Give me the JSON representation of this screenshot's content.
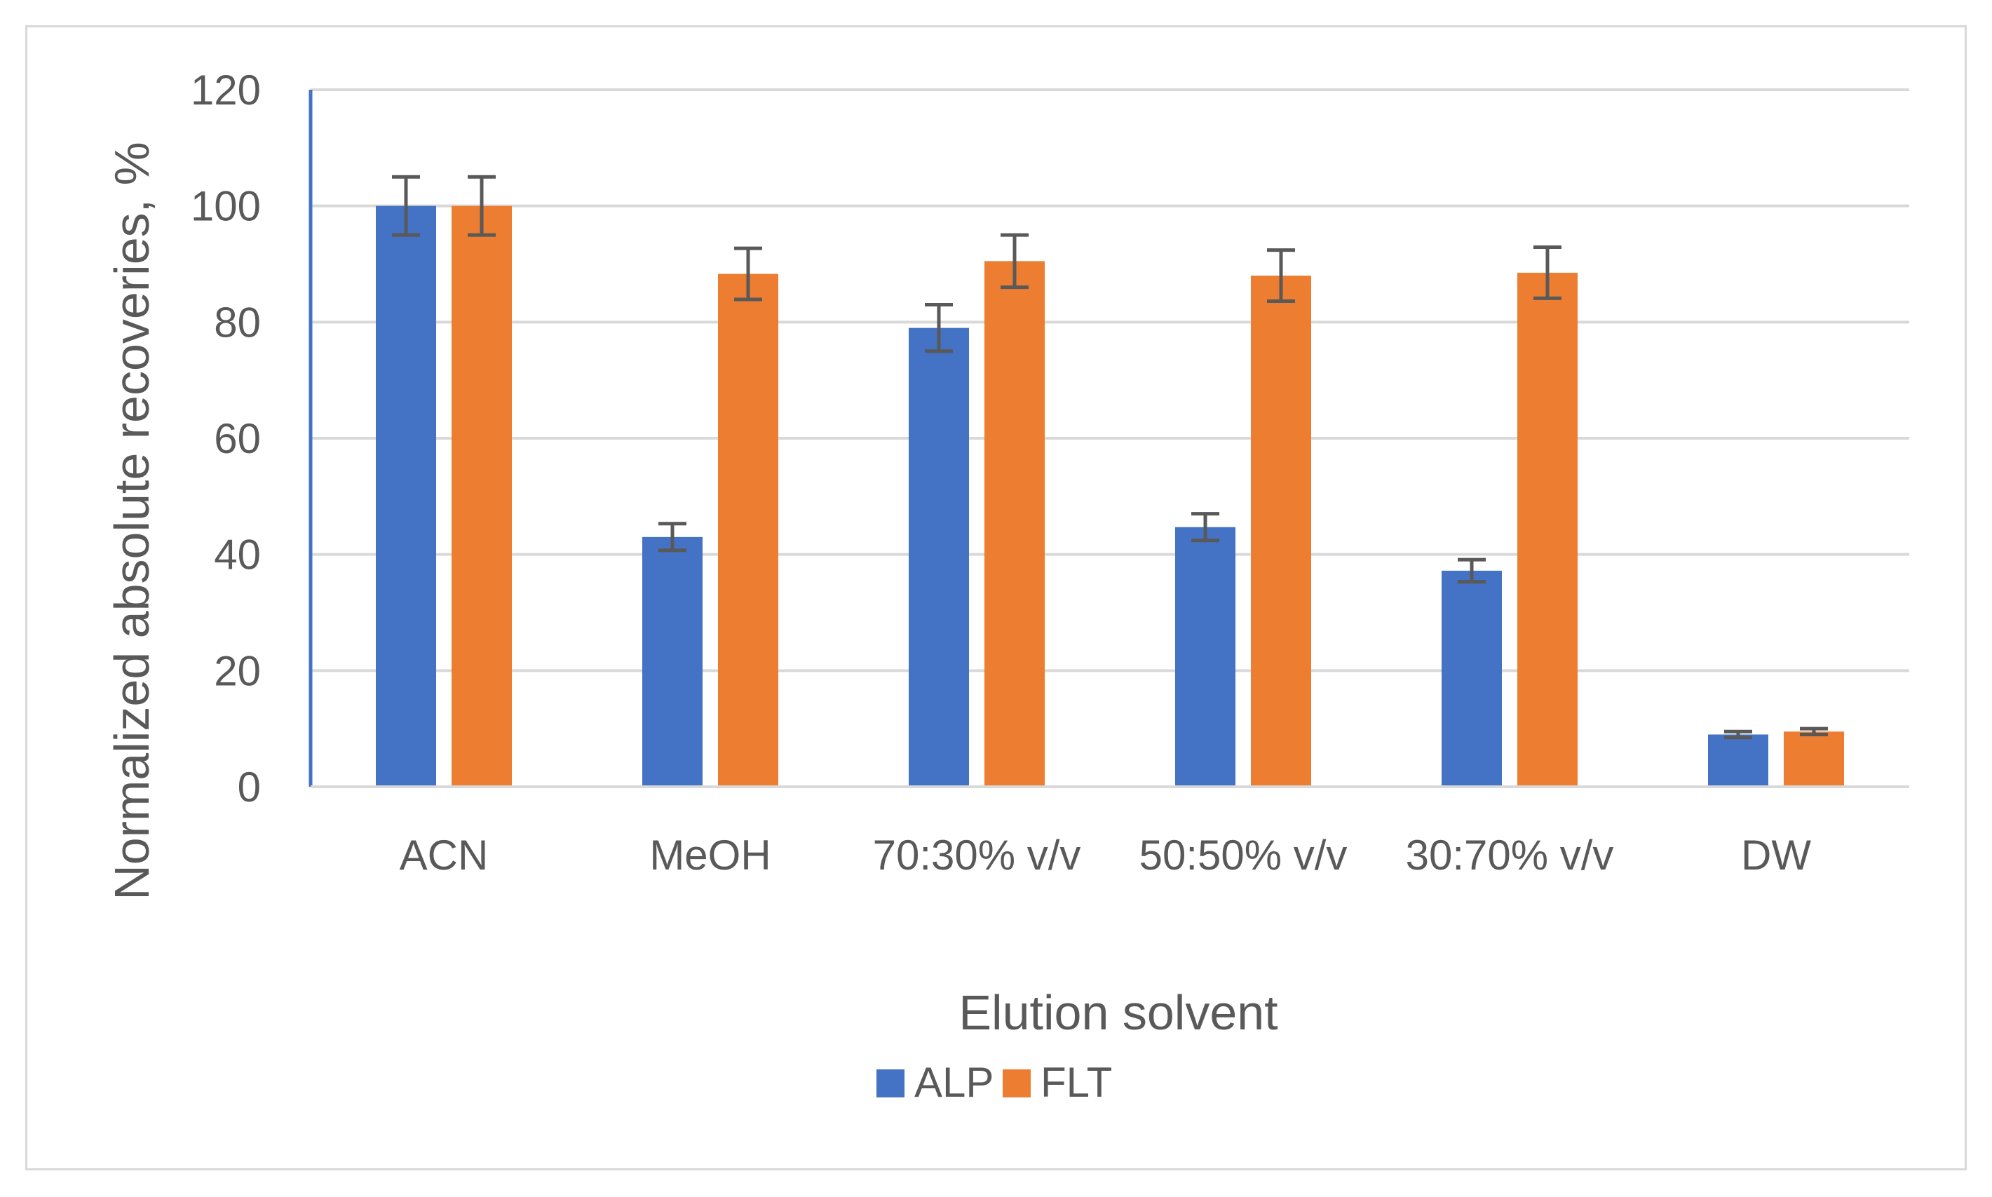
{
  "chart_data": {
    "type": "bar",
    "title": "",
    "xlabel": "Elution solvent",
    "ylabel": "Normalized absolute recoveries, %",
    "ylim": [
      0,
      120
    ],
    "ytick_step": 20,
    "yticks": [
      "0",
      "20",
      "40",
      "60",
      "80",
      "100",
      "120"
    ],
    "grid": true,
    "legend_position": "bottom-center",
    "categories": [
      "ACN",
      "MeOH",
      "70:30% v/v",
      "50:50% v/v",
      "30:70% v/v",
      "DW"
    ],
    "series": [
      {
        "name": "ALP",
        "color": "#4472c4",
        "values": [
          100,
          43,
          79,
          44.7,
          37.2,
          9
        ],
        "errors": [
          5,
          2.3,
          4,
          2.3,
          1.9,
          0.5
        ]
      },
      {
        "name": "FLT",
        "color": "#ed7d31",
        "values": [
          100,
          88.3,
          90.5,
          88,
          88.5,
          9.5
        ],
        "errors": [
          5,
          4.4,
          4.5,
          4.4,
          4.4,
          0.5
        ]
      }
    ],
    "error_bar_color": "#595959",
    "axis_color": "#4472c4",
    "grid_color": "#d9d9d9"
  }
}
